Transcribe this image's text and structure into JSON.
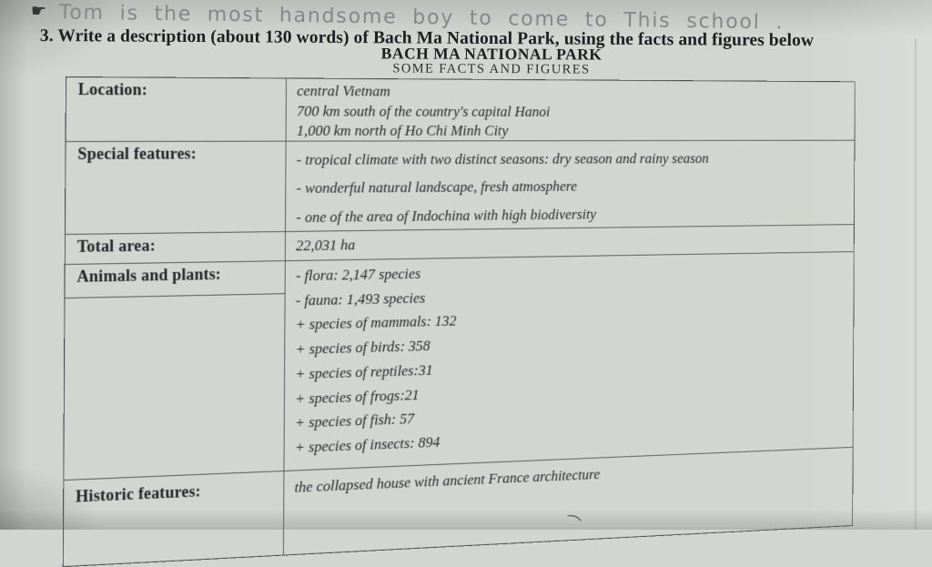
{
  "handwriting": {
    "icon": "☛",
    "text": "Tom is the most handsome boy to come to This school ."
  },
  "exercise": {
    "prompt": "3. Write a description (about 130 words) of Bach Ma National Park, using the facts and figures below"
  },
  "table": {
    "title": "BACH MA NATIONAL PARK",
    "subtitle": "SOME FACTS AND FIGURES",
    "rows": [
      {
        "label": "Location:",
        "lines": [
          "central Vietnam",
          "700 km south of the country's capital Hanoi",
          "1,000 km north of Ho Chi Minh City"
        ]
      },
      {
        "label": "Special features:",
        "lines": [
          "- tropical climate with two distinct seasons: dry season and rainy season",
          "- wonderful natural landscape, fresh atmosphere",
          "- one of the area of Indochina with high biodiversity"
        ]
      },
      {
        "label": "Total area:",
        "lines": [
          "22,031 ha"
        ]
      },
      {
        "label": "Animals and plants:",
        "lines": [
          "- flora: 2,147 species",
          "- fauna: 1,493 species",
          "+ species of mammals: 132",
          "+ species of birds: 358",
          "+ species of reptiles:31",
          "+ species of frogs:21",
          "+ species of fish: 57",
          "+ species of insects: 894"
        ]
      },
      {
        "label": "Historic features:",
        "lines": [
          "the collapsed house with ancient France architecture"
        ]
      }
    ]
  },
  "stray_marks": {
    "curl": ")",
    "tick": "ˮ"
  },
  "colors": {
    "paper": "#d3d5d1",
    "print_ink": "#1d1f22",
    "value_ink": "#292b2e",
    "pencil": "#84878b",
    "table_border": "#54575b",
    "photo_edge_tan": "#b28e60"
  }
}
